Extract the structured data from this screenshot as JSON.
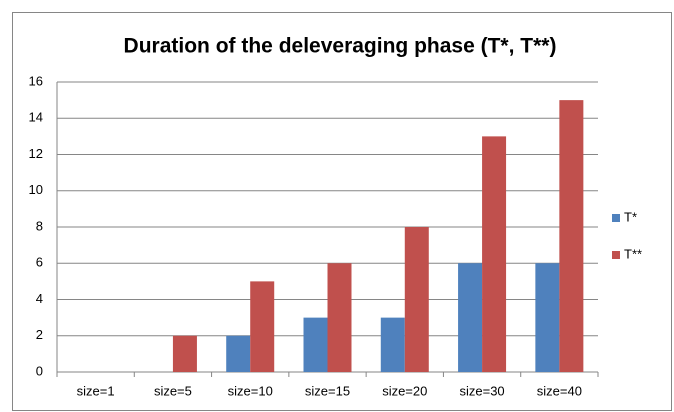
{
  "chart_data": {
    "type": "bar",
    "title": "Duration of the deleveraging phase (T*, T**)",
    "categories": [
      "size=1",
      "size=5",
      "size=10",
      "size=15",
      "size=20",
      "size=30",
      "size=40"
    ],
    "series": [
      {
        "name": "T*",
        "color": "#4f81bd",
        "values": [
          0,
          0,
          2,
          3,
          3,
          6,
          6
        ]
      },
      {
        "name": "T**",
        "color": "#c0504d",
        "values": [
          0,
          2,
          5,
          6,
          8,
          13,
          15
        ]
      }
    ],
    "ylim": [
      0,
      16
    ],
    "yticks": [
      0,
      2,
      4,
      6,
      8,
      10,
      12,
      14,
      16
    ],
    "grid": true,
    "legend": "right"
  }
}
